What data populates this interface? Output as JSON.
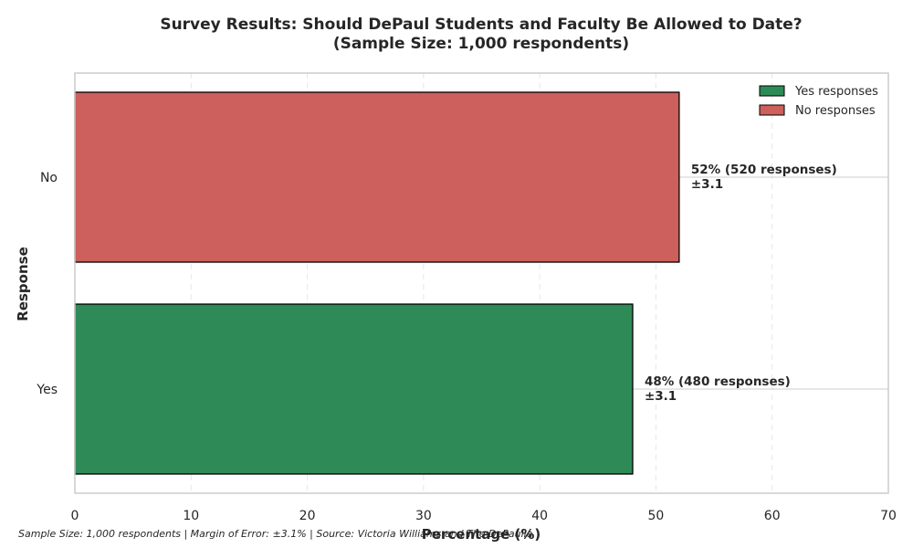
{
  "chart_data": {
    "type": "bar",
    "orientation": "horizontal",
    "title": [
      "Survey Results: Should DePaul Students and Faculty Be Allowed to Date?",
      "(Sample Size: 1,000 respondents)"
    ],
    "xlabel": "Percentage (%)",
    "ylabel": "Response",
    "xlim": [
      0,
      70
    ],
    "xticks": [
      0,
      10,
      20,
      30,
      40,
      50,
      60,
      70
    ],
    "categories": [
      "No",
      "Yes"
    ],
    "values": [
      52,
      48
    ],
    "colors": [
      "#cd5f5c",
      "#2e8b57"
    ],
    "labels": [
      [
        "52% (520 responses)",
        "±3.1"
      ],
      [
        "48% (480 responses)",
        "±3.1"
      ]
    ],
    "grid": true,
    "legend": {
      "placement": "top-right",
      "entries": [
        {
          "name": "Yes responses",
          "color": "#2e8b57"
        },
        {
          "name": "No responses",
          "color": "#cd5f5c"
        }
      ]
    },
    "footnote": "Sample Size: 1,000 respondents | Margin of Error: ±3.1% | Source: Victoria Williams and The DePaulia"
  }
}
